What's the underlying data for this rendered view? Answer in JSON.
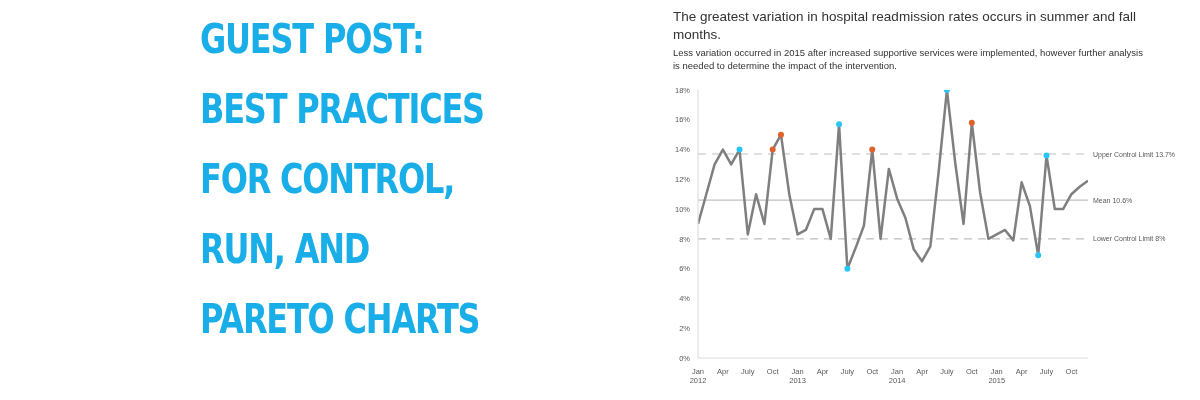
{
  "chart_data": {
    "type": "line",
    "title": "The greatest variation in hospital readmission rates occurs in summer and fall months.",
    "subtitle": "Less variation occurred in 2015 after increased supportive services were implemented, however further analysis is needed to determine the impact of the intervention.",
    "annotations": [
      "GUEST POST:\nBEST PRACTICES\nFOR CONTROL,\nRUN, AND\nPARETO CHARTS"
    ],
    "categories": [
      "Jan 2012",
      null,
      null,
      "Apr",
      null,
      null,
      "July",
      null,
      null,
      "Oct",
      null,
      null,
      "Jan 2013",
      null,
      null,
      "Apr",
      null,
      null,
      "July",
      null,
      null,
      "Oct",
      null,
      null,
      "Jan 2014",
      null,
      null,
      "Apr",
      null,
      null,
      "July",
      null,
      null,
      "Oct",
      null,
      null,
      "Jan 2015",
      null,
      null,
      "Apr",
      null,
      null,
      "July",
      null,
      null,
      "Oct",
      null,
      null
    ],
    "series": [
      {
        "color": "#7f7f7f",
        "marker": "none",
        "values": [
          9,
          11,
          13,
          14,
          13,
          14,
          8.3,
          11,
          9,
          14,
          15,
          11,
          8.3,
          8.6,
          10,
          10,
          8,
          15.7,
          6,
          7.4,
          8.9,
          14,
          8,
          12.7,
          10.7,
          9.4,
          7.3,
          6.5,
          7.5,
          12.5,
          18,
          13.1,
          9,
          15.8,
          11.1,
          8,
          8.3,
          8.6,
          7.9,
          11.8,
          10.2,
          6.9,
          13.6,
          10,
          10,
          11,
          11.5,
          11.9
        ]
      },
      {
        "type": "scatter",
        "marker": "circle",
        "color": "#29c5f6",
        "values": [
          null,
          null,
          null,
          null,
          null,
          14,
          null,
          null,
          null,
          null,
          null,
          null,
          null,
          null,
          null,
          null,
          null,
          15.7,
          6,
          null,
          null,
          null,
          null,
          null,
          null,
          null,
          null,
          null,
          null,
          null,
          18,
          null,
          null,
          null,
          null,
          null,
          null,
          null,
          null,
          null,
          null,
          6.9,
          13.6,
          null,
          null,
          null,
          null,
          null
        ]
      },
      {
        "type": "scatter",
        "marker": "circle",
        "color": "#e0622a",
        "values": [
          null,
          null,
          null,
          null,
          null,
          null,
          null,
          null,
          null,
          14,
          15,
          null,
          null,
          null,
          null,
          null,
          null,
          null,
          null,
          null,
          null,
          14,
          null,
          null,
          null,
          null,
          null,
          null,
          null,
          null,
          null,
          null,
          null,
          15.8,
          null,
          null,
          null,
          null,
          null,
          null,
          null,
          null,
          null,
          null,
          null,
          null,
          null,
          null
        ]
      }
    ],
    "ylim": [
      0,
      18
    ],
    "yticks": [
      {
        "value": 0,
        "label": "0%"
      },
      {
        "value": 2,
        "label": "2%"
      },
      {
        "value": 4,
        "label": "4%"
      },
      {
        "value": 6,
        "label": "6%"
      },
      {
        "value": 8,
        "label": "8%"
      },
      {
        "value": 10,
        "label": "10%"
      },
      {
        "value": 12,
        "label": "12%"
      },
      {
        "value": 14,
        "label": "14%"
      },
      {
        "value": 16,
        "label": "16%"
      },
      {
        "value": 18,
        "label": "18%"
      }
    ],
    "line_style": "solid",
    "ref_lines": [
      {
        "axis": "y",
        "value": 13.7,
        "label": "Upper Control Limit 13.7%",
        "color": "#bfbfbf",
        "line_style": "dashed"
      },
      {
        "axis": "y",
        "value": 10.6,
        "label": "Mean 10.6%",
        "color": "#bfbfbf",
        "line_style": "solid"
      },
      {
        "axis": "y",
        "value": 8,
        "label": "Lower Control Limit 8%",
        "color": "#bfbfbf",
        "line_style": "dashed"
      }
    ]
  }
}
